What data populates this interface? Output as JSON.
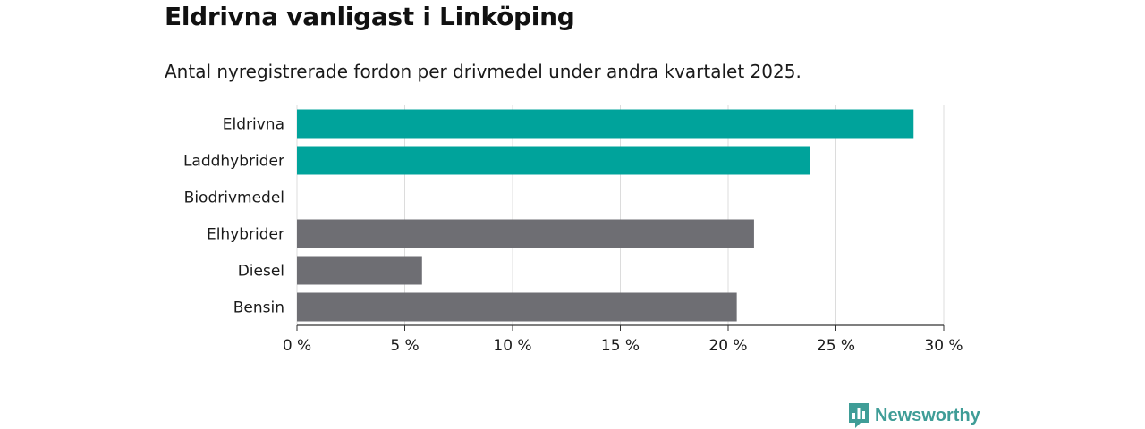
{
  "chart_data": {
    "type": "bar",
    "orientation": "horizontal",
    "title": "Eldrivna vanligast i Linköping",
    "subtitle": "Antal nyregistrerade fordon per drivmedel under andra kvartalet 2025.",
    "categories": [
      "Eldrivna",
      "Laddhybrider",
      "Biodrivmedel",
      "Elhybrider",
      "Diesel",
      "Bensin"
    ],
    "values": [
      28.6,
      23.8,
      0,
      21.2,
      5.8,
      20.4
    ],
    "bar_colors": [
      "#00a39b",
      "#00a39b",
      "#00a39b",
      "#6e6e73",
      "#6e6e73",
      "#6e6e73"
    ],
    "xlim": [
      0,
      30
    ],
    "xticks": [
      0,
      5,
      10,
      15,
      20,
      25,
      30
    ],
    "xtick_labels": [
      "0 %",
      "5 %",
      "10 %",
      "15 %",
      "20 %",
      "25 %",
      "30 %"
    ],
    "grid": true,
    "xlabel": "",
    "ylabel": ""
  },
  "brand": {
    "name": "Newsworthy",
    "icon": "newsworthy-logo-icon",
    "color": "#3f9d97"
  }
}
